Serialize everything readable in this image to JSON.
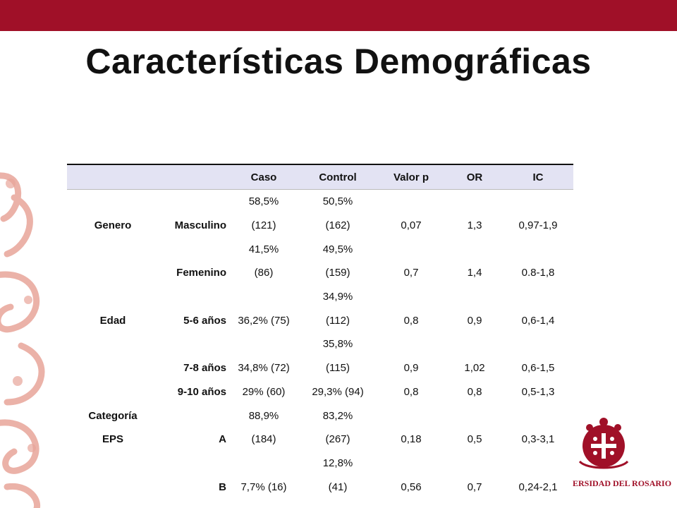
{
  "title": "Características Demográficas",
  "logo_text": "ERSIDAD DEL ROSARIO",
  "colors": {
    "accent": "#a01028",
    "header_bg": "#e3e3f3"
  },
  "table": {
    "headers": [
      "",
      "",
      "Caso",
      "Control",
      "Valor p",
      "OR",
      "IC"
    ],
    "rows": [
      [
        "",
        "",
        "58,5%",
        "50,5%",
        "",
        "",
        ""
      ],
      [
        "Genero",
        "Masculino",
        "(121)",
        "(162)",
        "0,07",
        "1,3",
        "0,97-1,9"
      ],
      [
        "",
        "",
        "41,5%",
        "49,5%",
        "",
        "",
        ""
      ],
      [
        "",
        "Femenino",
        "(86)",
        "(159)",
        "0,7",
        "1,4",
        "0.8-1,8"
      ],
      [
        "",
        "",
        "",
        "34,9%",
        "",
        "",
        ""
      ],
      [
        "Edad",
        "5-6 años",
        "36,2% (75)",
        "(112)",
        "0,8",
        "0,9",
        "0,6-1,4"
      ],
      [
        "",
        "",
        "",
        "35,8%",
        "",
        "",
        ""
      ],
      [
        "",
        "7-8 años",
        "34,8% (72)",
        "(115)",
        "0,9",
        "1,02",
        "0,6-1,5"
      ],
      [
        "",
        "9-10 años",
        "29% (60)",
        "29,3% (94)",
        "0,8",
        "0,8",
        "0,5-1,3"
      ],
      [
        "Categoría",
        "",
        "88,9%",
        "83,2%",
        "",
        "",
        ""
      ],
      [
        "EPS",
        "A",
        "(184)",
        "(267)",
        "0,18",
        "0,5",
        "0,3-3,1"
      ],
      [
        "",
        "",
        "",
        "12,8%",
        "",
        "",
        ""
      ],
      [
        "",
        "B",
        "7,7% (16)",
        "(41)",
        "0,56",
        "0,7",
        "0,24-2,1"
      ]
    ]
  }
}
